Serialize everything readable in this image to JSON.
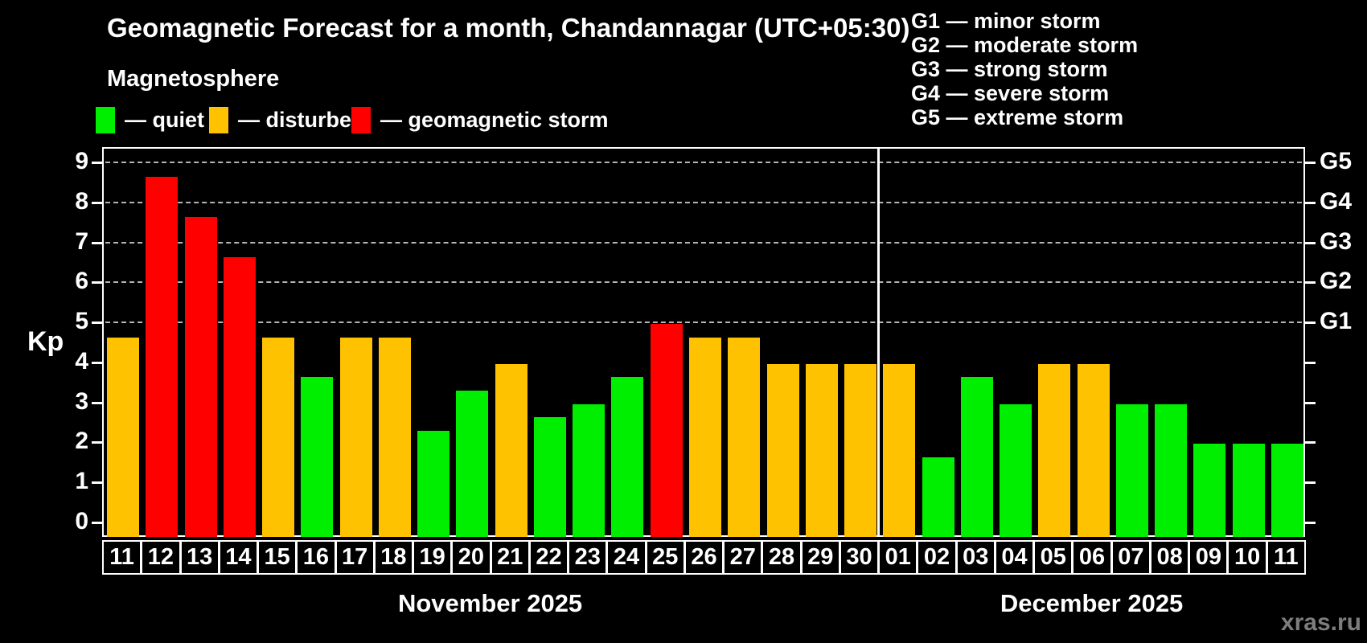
{
  "header": {
    "title": "Geomagnetic Forecast for a month, Chandannagar (UTC+05:30)",
    "subtitle": "Magnetosphere"
  },
  "legend": {
    "items": [
      {
        "key": "quiet",
        "label": "— quiet",
        "color": "#00ee00"
      },
      {
        "key": "disturbed",
        "label": "— disturbed",
        "color": "#ffc200"
      },
      {
        "key": "storm",
        "label": "— geomagnetic storm",
        "color": "#ff0000"
      }
    ]
  },
  "g_legend": {
    "items": [
      "G1 — minor storm",
      "G2 — moderate storm",
      "G3 — strong storm",
      "G4 — severe storm",
      "G5 — extreme storm"
    ]
  },
  "colors": {
    "quiet": "#00ee00",
    "disturbed": "#ffc200",
    "storm": "#ff0000",
    "grid": "#b5b5b5",
    "frame": "#ffffff",
    "watermark": "#7d7d7d"
  },
  "chart_data": {
    "type": "bar",
    "ylabel_left": "Kp",
    "ylim": [
      -0.36,
      9.38
    ],
    "y_ticks_left": [
      "0",
      "1",
      "2",
      "3",
      "4",
      "5",
      "6",
      "7",
      "8",
      "9"
    ],
    "gridlines_at": [
      5,
      6,
      7,
      8,
      9
    ],
    "right_axis_labels": {
      "5": "G1",
      "6": "G2",
      "7": "G3",
      "8": "G4",
      "9": "G5"
    },
    "legend_position": "top",
    "grid": "dashed horizontal at storm levels only",
    "months": [
      {
        "label": "November 2025",
        "days": [
          {
            "d": "11",
            "kp": 4.67,
            "s": "disturbed"
          },
          {
            "d": "12",
            "kp": 8.67,
            "s": "storm"
          },
          {
            "d": "13",
            "kp": 7.67,
            "s": "storm"
          },
          {
            "d": "14",
            "kp": 6.67,
            "s": "storm"
          },
          {
            "d": "15",
            "kp": 4.67,
            "s": "disturbed"
          },
          {
            "d": "16",
            "kp": 3.67,
            "s": "quiet"
          },
          {
            "d": "17",
            "kp": 4.67,
            "s": "disturbed"
          },
          {
            "d": "18",
            "kp": 4.67,
            "s": "disturbed"
          },
          {
            "d": "19",
            "kp": 2.33,
            "s": "quiet"
          },
          {
            "d": "20",
            "kp": 3.33,
            "s": "quiet"
          },
          {
            "d": "21",
            "kp": 4.0,
            "s": "disturbed"
          },
          {
            "d": "22",
            "kp": 2.67,
            "s": "quiet"
          },
          {
            "d": "23",
            "kp": 3.0,
            "s": "quiet"
          },
          {
            "d": "24",
            "kp": 3.67,
            "s": "quiet"
          },
          {
            "d": "25",
            "kp": 5.0,
            "s": "storm"
          },
          {
            "d": "26",
            "kp": 4.67,
            "s": "disturbed"
          },
          {
            "d": "27",
            "kp": 4.67,
            "s": "disturbed"
          },
          {
            "d": "28",
            "kp": 4.0,
            "s": "disturbed"
          },
          {
            "d": "29",
            "kp": 4.0,
            "s": "disturbed"
          },
          {
            "d": "30",
            "kp": 4.0,
            "s": "disturbed"
          }
        ]
      },
      {
        "label": "December 2025",
        "days": [
          {
            "d": "01",
            "kp": 4.0,
            "s": "disturbed"
          },
          {
            "d": "02",
            "kp": 1.67,
            "s": "quiet"
          },
          {
            "d": "03",
            "kp": 3.67,
            "s": "quiet"
          },
          {
            "d": "04",
            "kp": 3.0,
            "s": "quiet"
          },
          {
            "d": "05",
            "kp": 4.0,
            "s": "disturbed"
          },
          {
            "d": "06",
            "kp": 4.0,
            "s": "disturbed"
          },
          {
            "d": "07",
            "kp": 3.0,
            "s": "quiet"
          },
          {
            "d": "08",
            "kp": 3.0,
            "s": "quiet"
          },
          {
            "d": "09",
            "kp": 2.0,
            "s": "quiet"
          },
          {
            "d": "10",
            "kp": 2.0,
            "s": "quiet"
          },
          {
            "d": "11",
            "kp": 2.0,
            "s": "quiet"
          }
        ]
      }
    ]
  },
  "watermark": "xras.ru"
}
